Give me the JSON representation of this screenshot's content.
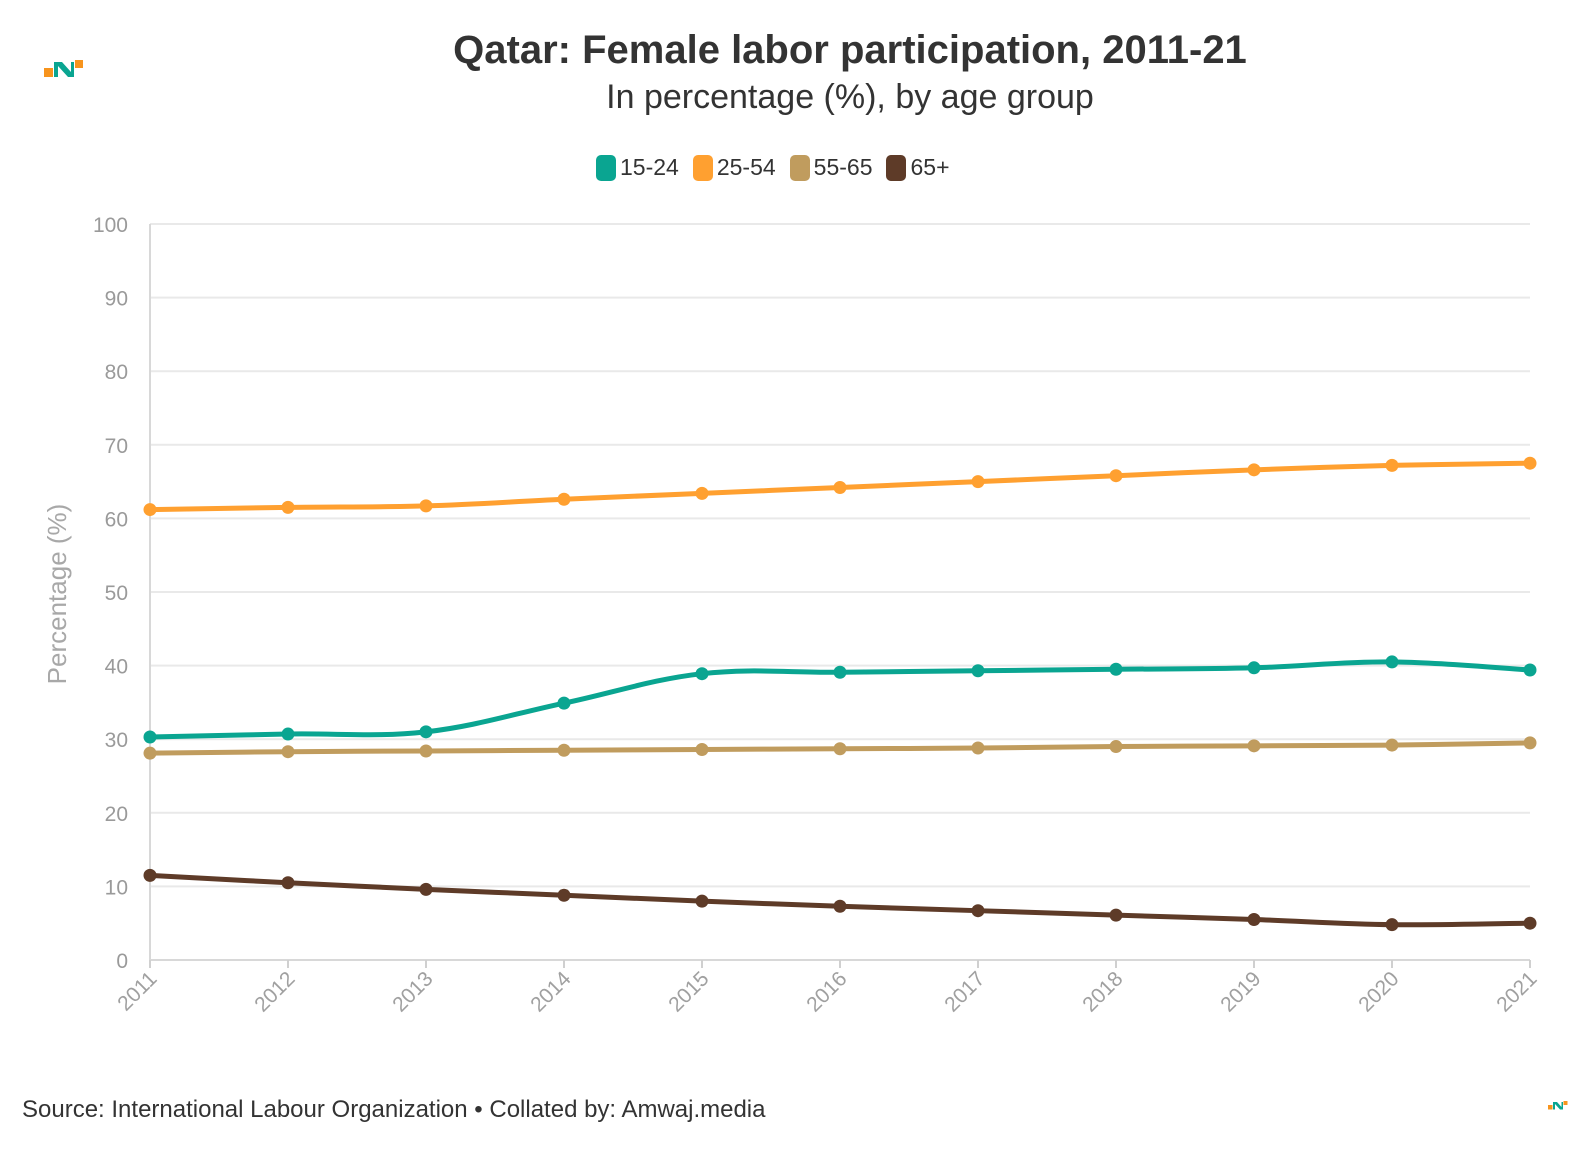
{
  "header": {
    "title": "Qatar: Female labor participation, 2011-21",
    "subtitle": "In percentage (%), by age group"
  },
  "footer": {
    "source": "Source: International Labour Organization • Collated by: Amwaj.media"
  },
  "colors": {
    "s1524": "#0aa591",
    "s2554": "#ffa030",
    "s5565": "#c09c5e",
    "s65": "#5e3b28",
    "logo_orange": "#f7941d",
    "logo_teal": "#0aa591"
  },
  "chart_data": {
    "type": "line",
    "ylabel": "Percentage (%)",
    "xlabel": "",
    "ylim": [
      0,
      100
    ],
    "yticks": [
      0,
      10,
      20,
      30,
      40,
      50,
      60,
      70,
      80,
      90,
      100
    ],
    "grid": true,
    "legend_position": "top-center",
    "x": [
      "2011",
      "2012",
      "2013",
      "2014",
      "2015",
      "2016",
      "2017",
      "2018",
      "2019",
      "2020",
      "2021"
    ],
    "series": [
      {
        "name": "15-24",
        "color": "#0aa591",
        "values": [
          30.3,
          30.7,
          31.0,
          34.9,
          38.9,
          39.1,
          39.3,
          39.5,
          39.7,
          40.5,
          39.4
        ]
      },
      {
        "name": "25-54",
        "color": "#ffa030",
        "values": [
          61.2,
          61.5,
          61.7,
          62.6,
          63.4,
          64.2,
          65.0,
          65.8,
          66.6,
          67.2,
          67.5
        ]
      },
      {
        "name": "55-65",
        "color": "#c09c5e",
        "values": [
          28.1,
          28.3,
          28.4,
          28.5,
          28.6,
          28.7,
          28.8,
          29.0,
          29.1,
          29.2,
          29.5
        ]
      },
      {
        "name": "65+",
        "color": "#5e3b28",
        "values": [
          11.5,
          10.5,
          9.6,
          8.8,
          8.0,
          7.3,
          6.7,
          6.1,
          5.5,
          4.8,
          5.0
        ]
      }
    ]
  }
}
